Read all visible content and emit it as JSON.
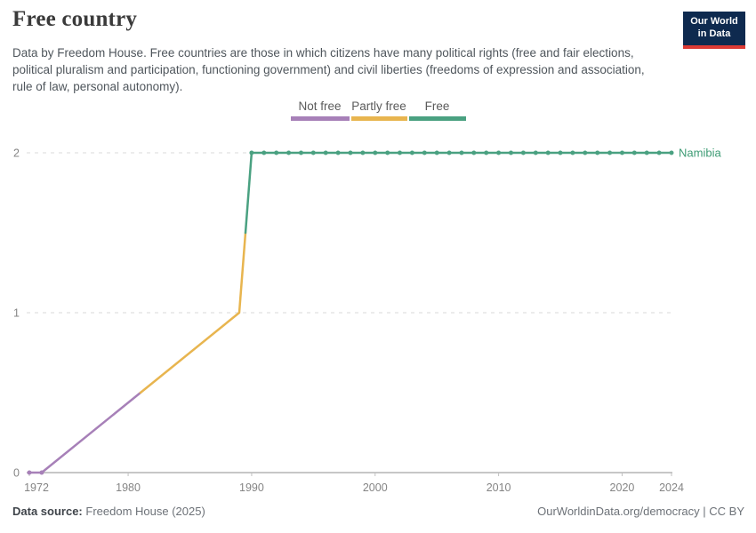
{
  "header": {
    "title": "Free country",
    "subtitle": "Data by Freedom House. Free countries are those in which citizens have many political rights (free and fair elections, political pluralism and participation, functioning government) and civil liberties (freedoms of expression and association, rule of law, personal autonomy)."
  },
  "logo": {
    "line1": "Our World",
    "line2": "in Data",
    "bg_color": "#0e2a4f",
    "accent_color": "#dc3a34"
  },
  "chart_data": {
    "type": "line",
    "title": "Free country",
    "x_range": [
      1972,
      2024
    ],
    "y_range": [
      0,
      2
    ],
    "x_ticks": [
      1972,
      1980,
      1990,
      2000,
      2010,
      2020,
      2024
    ],
    "y_ticks": [
      0,
      1,
      2
    ],
    "grid": "dashed horizontal gridlines at 1 and 2, solid axis at 0",
    "legend_position": "top center",
    "value_scale_note": "0 = Not free, 1 = Partly free, 2 = Free",
    "categories": [
      {
        "value": 0,
        "label": "Not free",
        "color": "#a780b8"
      },
      {
        "value": 1,
        "label": "Partly free",
        "color": "#e8b54f"
      },
      {
        "value": 2,
        "label": "Free",
        "color": "#4aa181"
      }
    ],
    "series": [
      {
        "name": "Namibia",
        "label_color": "#3d9b74",
        "points": [
          [
            1972,
            0
          ],
          [
            1973,
            0
          ],
          [
            1989,
            1
          ],
          [
            1990,
            2
          ],
          [
            1991,
            2
          ],
          [
            1992,
            2
          ],
          [
            1993,
            2
          ],
          [
            1994,
            2
          ],
          [
            1995,
            2
          ],
          [
            1996,
            2
          ],
          [
            1997,
            2
          ],
          [
            1998,
            2
          ],
          [
            1999,
            2
          ],
          [
            2000,
            2
          ],
          [
            2001,
            2
          ],
          [
            2002,
            2
          ],
          [
            2003,
            2
          ],
          [
            2004,
            2
          ],
          [
            2005,
            2
          ],
          [
            2006,
            2
          ],
          [
            2007,
            2
          ],
          [
            2008,
            2
          ],
          [
            2009,
            2
          ],
          [
            2010,
            2
          ],
          [
            2011,
            2
          ],
          [
            2012,
            2
          ],
          [
            2013,
            2
          ],
          [
            2014,
            2
          ],
          [
            2015,
            2
          ],
          [
            2016,
            2
          ],
          [
            2017,
            2
          ],
          [
            2018,
            2
          ],
          [
            2019,
            2
          ],
          [
            2020,
            2
          ],
          [
            2021,
            2
          ],
          [
            2022,
            2
          ],
          [
            2023,
            2
          ],
          [
            2024,
            2
          ]
        ],
        "no_marker_years": [
          1989
        ]
      }
    ]
  },
  "footer": {
    "data_source_label": "Data source:",
    "data_source_value": "Freedom House (2025)",
    "link": "OurWorldinData.org/democracy | CC BY"
  }
}
